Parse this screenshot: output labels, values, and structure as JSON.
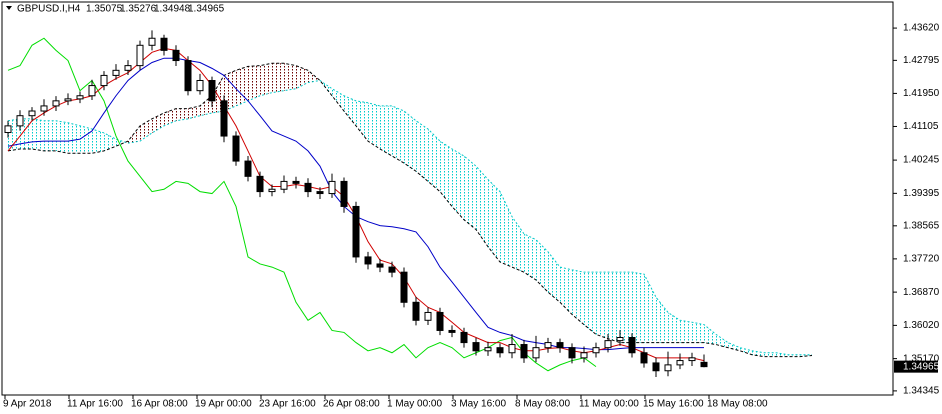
{
  "chart_data": {
    "type": "candlestick",
    "symbol": "GBPUSD.I,H4",
    "categories": [
      "9 Apr 2018",
      "11 Apr 16:00",
      "16 Apr 08:00",
      "19 Apr 00:00",
      "23 Apr 16:00",
      "26 Apr 08:00",
      "1 May 00:00",
      "3 May 16:00",
      "8 May 08:00",
      "11 May 00:00",
      "15 May 16:00",
      "18 May 08:00"
    ],
    "open": [
      1.4095,
      1.4112,
      1.4138,
      1.415,
      1.4163,
      1.4176,
      1.4181,
      1.4189,
      1.4215,
      1.4241,
      1.4254,
      1.4266,
      1.4318,
      1.4336,
      1.4305,
      1.4279,
      1.4202,
      1.4228,
      1.4176,
      1.4086,
      1.4022,
      1.3983,
      1.3944,
      1.395,
      1.397,
      1.3965,
      1.3944,
      1.3939,
      1.397,
      1.3906,
      1.3777,
      1.3759,
      1.3751,
      1.3738,
      1.3661,
      1.3615,
      1.3635,
      1.3589,
      1.3584,
      1.3558,
      1.3537,
      1.3545,
      1.3532,
      1.3553,
      1.3519,
      1.3545,
      1.3558,
      1.3545,
      1.3519,
      1.3532,
      1.3545,
      1.3563,
      1.3571,
      1.3532,
      1.3506,
      1.3486,
      1.3501,
      1.3512,
      1.35075
    ],
    "high": [
      1.4125,
      1.4152,
      1.416,
      1.418,
      1.4188,
      1.4195,
      1.42,
      1.423,
      1.4252,
      1.427,
      1.428,
      1.433,
      1.4356,
      1.4345,
      1.4318,
      1.429,
      1.4245,
      1.4238,
      1.419,
      1.4098,
      1.4035,
      1.3995,
      1.3962,
      1.3985,
      1.3982,
      1.3978,
      1.3955,
      1.399,
      1.398,
      1.3918,
      1.379,
      1.3772,
      1.3765,
      1.375,
      1.3675,
      1.3648,
      1.3647,
      1.3602,
      1.3596,
      1.357,
      1.356,
      1.3556,
      1.358,
      1.3565,
      1.3575,
      1.357,
      1.3568,
      1.3556,
      1.3548,
      1.3558,
      1.358,
      1.359,
      1.3582,
      1.3545,
      1.352,
      1.3535,
      1.353,
      1.3532,
      1.35276
    ],
    "low": [
      1.4082,
      1.41,
      1.4126,
      1.4138,
      1.415,
      1.4165,
      1.417,
      1.4178,
      1.4203,
      1.423,
      1.4242,
      1.4255,
      1.4305,
      1.4292,
      1.4265,
      1.419,
      1.4192,
      1.416,
      1.407,
      1.401,
      1.397,
      1.393,
      1.3932,
      1.394,
      1.3952,
      1.393,
      1.3925,
      1.3928,
      1.389,
      1.3762,
      1.3745,
      1.3738,
      1.3725,
      1.3648,
      1.3602,
      1.3603,
      1.3577,
      1.3572,
      1.3545,
      1.3525,
      1.3524,
      1.352,
      1.3518,
      1.3506,
      1.3508,
      1.3532,
      1.3532,
      1.3505,
      1.3507,
      1.352,
      1.3533,
      1.355,
      1.352,
      1.3494,
      1.347,
      1.3472,
      1.349,
      1.3498,
      1.34948
    ],
    "close": [
      1.4112,
      1.4138,
      1.415,
      1.4163,
      1.4176,
      1.4181,
      1.4189,
      1.4215,
      1.4241,
      1.4254,
      1.4266,
      1.4318,
      1.4336,
      1.4305,
      1.4279,
      1.4202,
      1.4228,
      1.4176,
      1.4086,
      1.4022,
      1.3983,
      1.3944,
      1.395,
      1.397,
      1.3965,
      1.3944,
      1.3939,
      1.397,
      1.3906,
      1.3777,
      1.3759,
      1.3751,
      1.3738,
      1.3661,
      1.3615,
      1.3635,
      1.3589,
      1.3584,
      1.3558,
      1.3537,
      1.3545,
      1.3532,
      1.3553,
      1.3519,
      1.3545,
      1.3558,
      1.3545,
      1.3519,
      1.3532,
      1.3545,
      1.3563,
      1.3571,
      1.3532,
      1.3506,
      1.3486,
      1.3501,
      1.3512,
      1.3519,
      1.34965
    ],
    "candle_color": "#000000",
    "indicators": {
      "tenkan_sen": {
        "color": "#d00000",
        "values": [
          1.4048,
          1.4086,
          1.4125,
          1.4145,
          1.4163,
          1.4176,
          1.4181,
          1.4189,
          1.4215,
          1.4233,
          1.4248,
          1.4274,
          1.43,
          1.431,
          1.4305,
          1.4279,
          1.4254,
          1.4215,
          1.4163,
          1.4112,
          1.4048,
          1.3983,
          1.3957,
          1.3957,
          1.3962,
          1.3957,
          1.395,
          1.3957,
          1.3931,
          1.388,
          1.3816,
          1.3769,
          1.3759,
          1.3725,
          1.3674,
          1.3648,
          1.3635,
          1.361,
          1.3584,
          1.3571,
          1.3558,
          1.3558,
          1.3545,
          1.3537,
          1.3537,
          1.3543,
          1.3545,
          1.3537,
          1.3532,
          1.3537,
          1.3545,
          1.3553,
          1.3545,
          1.3532,
          1.3519,
          1.3519,
          1.3519,
          1.3519,
          1.3512
        ]
      },
      "kijun_sen": {
        "color": "#0000c8",
        "values": [
          1.406,
          1.4066,
          1.4071,
          1.4073,
          1.4073,
          1.4073,
          1.4078,
          1.4099,
          1.4145,
          1.4189,
          1.4228,
          1.4254,
          1.4274,
          1.4285,
          1.4285,
          1.4279,
          1.4274,
          1.4259,
          1.4241,
          1.4207,
          1.4176,
          1.4138,
          1.4099,
          1.4086,
          1.4073,
          1.4048,
          1.4009,
          1.3944,
          1.3906,
          1.388,
          1.3867,
          1.3857,
          1.3854,
          1.3849,
          1.3841,
          1.3803,
          1.3751,
          1.3713,
          1.3674,
          1.3635,
          1.3597,
          1.3584,
          1.3576,
          1.3563,
          1.3558,
          1.3553,
          1.3545,
          1.3545,
          1.3543,
          1.354,
          1.354,
          1.3543,
          1.3545,
          1.3545,
          1.3545,
          1.3545,
          1.3545,
          1.3545,
          1.3545
        ]
      },
      "chikou_span": {
        "color": "#00dd00",
        "values": [
          1.4254,
          1.4266,
          1.4318,
          1.4336,
          1.4305,
          1.4279,
          1.4202,
          1.4228,
          1.4176,
          1.4086,
          1.4022,
          1.3983,
          1.3944,
          1.395,
          1.397,
          1.3965,
          1.3944,
          1.3939,
          1.397,
          1.3906,
          1.3777,
          1.3759,
          1.3751,
          1.3738,
          1.3661,
          1.3615,
          1.3635,
          1.3589,
          1.3584,
          1.3558,
          1.3537,
          1.3545,
          1.3532,
          1.3553,
          1.3519,
          1.3545,
          1.3558,
          1.3545,
          1.3519,
          1.3532,
          1.3545,
          1.3563,
          1.3571,
          1.3532,
          1.3506,
          1.3486,
          1.3501,
          1.3512,
          1.3519,
          1.34965,
          null,
          null,
          null,
          null,
          null,
          null,
          null,
          null,
          null
        ]
      },
      "senkou_span_a": {
        "color": "#00c8c8",
        "values": [
          1.4125,
          1.413,
          1.413,
          1.4125,
          1.4125,
          1.412,
          1.4112,
          1.4104,
          1.4094,
          1.4078,
          1.4068,
          1.4073,
          1.4094,
          1.4112,
          1.4125,
          1.413,
          1.4138,
          1.4145,
          1.415,
          1.4163,
          1.4176,
          1.4189,
          1.4197,
          1.4202,
          1.4207,
          1.4223,
          1.4228,
          1.4207,
          1.4189,
          1.4176,
          1.4171,
          1.4163,
          1.4163,
          1.415,
          1.4125,
          1.4104,
          1.4073,
          1.4053,
          1.4035,
          1.4009,
          1.3975,
          1.3944,
          1.388,
          1.3836,
          1.3821,
          1.379,
          1.3751,
          1.3744,
          1.3738,
          1.3738,
          1.3738,
          1.3738,
          1.3738,
          1.3733,
          1.3674,
          1.3635,
          1.3615,
          1.361,
          1.3604,
          1.3579,
          1.3558,
          1.3545,
          1.3537,
          1.3532,
          1.3532,
          1.3527,
          1.3527,
          1.3527
        ]
      },
      "senkou_span_b": {
        "color": "#000000",
        "values": [
          1.4048,
          1.4053,
          1.4053,
          1.4048,
          1.4048,
          1.4042,
          1.4042,
          1.4042,
          1.4048,
          1.406,
          1.4073,
          1.4112,
          1.413,
          1.4145,
          1.4156,
          1.4156,
          1.4163,
          1.4189,
          1.4241,
          1.4254,
          1.4264,
          1.4266,
          1.4272,
          1.4272,
          1.4266,
          1.4254,
          1.4228,
          1.4189,
          1.415,
          1.4112,
          1.4073,
          1.4053,
          1.4035,
          1.4017,
          1.3996,
          1.397,
          1.3944,
          1.3906,
          1.3872,
          1.3847,
          1.3803,
          1.3764,
          1.3751,
          1.3738,
          1.3718,
          1.3687,
          1.3661,
          1.363,
          1.3604,
          1.3579,
          1.3568,
          1.3558,
          1.3558,
          1.3558,
          1.3558,
          1.3558,
          1.3558,
          1.3558,
          1.3558,
          1.3553,
          1.3545,
          1.3537,
          1.3527,
          1.3522,
          1.3522,
          1.3522,
          1.3522,
          1.3525
        ]
      },
      "cloud_up_color": "#00cccc",
      "cloud_down_color": "#6b0000"
    },
    "ylim": [
      1.3424,
      1.4421
    ],
    "yticks": [
      {
        "value": 1.4362,
        "label": "1.43620"
      },
      1.42795,
      {
        "value": 1.4195,
        "label": "1.41950"
      },
      1.41105,
      1.40245,
      1.39395,
      1.38565,
      {
        "value": 1.3772,
        "label": "1.37720"
      },
      {
        "value": 1.3687,
        "label": "1.36870"
      },
      {
        "value": 1.3602,
        "label": "1.36020"
      },
      {
        "value": 1.3517,
        "label": "1.35170"
      },
      1.34345
    ]
  }
}
